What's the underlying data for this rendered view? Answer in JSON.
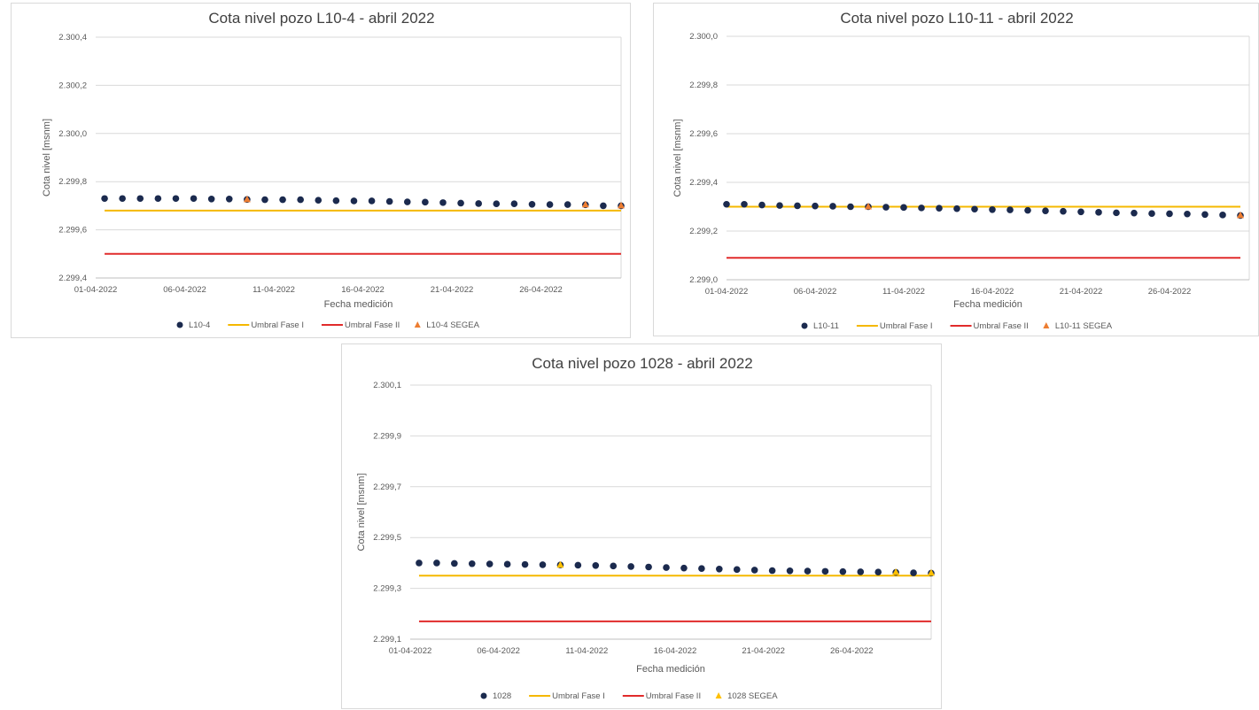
{
  "colors": {
    "dots": "#1b2a4e",
    "fase1": "#f5b800",
    "fase2": "#e12b2b",
    "segea_orange": "#ed7d31",
    "segea_yellow": "#ffc000",
    "grid": "#d9d9d9"
  },
  "chart_data": [
    {
      "type": "scatter",
      "title": "Cota nivel pozo L10-4 - abril 2022",
      "xlabel": "Fecha medición",
      "ylabel": "Cota nivel [msnm]",
      "ylim": [
        2299.4,
        2300.4
      ],
      "ytick_values": [
        2299.4,
        2299.6,
        2299.8,
        2300.0,
        2300.2,
        2300.4
      ],
      "ytick_labels": [
        "2.299,4",
        "2.299,6",
        "2.299,8",
        "2.300,0",
        "2.300,2",
        "2.300,4"
      ],
      "xlim": [
        1,
        30.5
      ],
      "xtick_values": [
        1,
        6,
        11,
        16,
        21,
        26
      ],
      "xtick_labels": [
        "01-04-2022",
        "06-04-2022",
        "11-04-2022",
        "16-04-2022",
        "21-04-2022",
        "26-04-2022"
      ],
      "grid": "horizontal",
      "legend": "bottom",
      "series": [
        {
          "name": "L10-4",
          "kind": "marker-circle",
          "color": "#1b2a4e",
          "x": [
            1.5,
            2.5,
            3.5,
            4.5,
            5.5,
            6.5,
            7.5,
            8.5,
            9.5,
            10.5,
            11.5,
            12.5,
            13.5,
            14.5,
            15.5,
            16.5,
            17.5,
            18.5,
            19.5,
            20.5,
            21.5,
            22.5,
            23.5,
            24.5,
            25.5,
            26.5,
            27.5,
            28.5,
            29.5,
            30.5
          ],
          "y": [
            2299.73,
            2299.73,
            2299.73,
            2299.73,
            2299.73,
            2299.73,
            2299.728,
            2299.728,
            2299.726,
            2299.725,
            2299.725,
            2299.725,
            2299.723,
            2299.721,
            2299.72,
            2299.72,
            2299.718,
            2299.716,
            2299.715,
            2299.713,
            2299.711,
            2299.709,
            2299.708,
            2299.708,
            2299.706,
            2299.705,
            2299.705,
            2299.704,
            2299.7,
            2299.7
          ]
        },
        {
          "name": "Umbral Fase I",
          "kind": "line",
          "color": "#f5b800",
          "x": [
            1.5,
            30.5
          ],
          "y": [
            2299.68,
            2299.68
          ]
        },
        {
          "name": "Umbral Fase II",
          "kind": "line",
          "color": "#e12b2b",
          "x": [
            1.5,
            30.5
          ],
          "y": [
            2299.5,
            2299.5
          ]
        },
        {
          "name": "L10-4 SEGEA",
          "kind": "marker-triangle",
          "color": "#ed7d31",
          "x": [
            9.5,
            28.5,
            30.5
          ],
          "y": [
            2299.726,
            2299.704,
            2299.7
          ]
        }
      ]
    },
    {
      "type": "scatter",
      "title": "Cota nivel pozo L10-11 - abril 2022",
      "xlabel": "Fecha medición",
      "ylabel": "Cota nivel [msnm]",
      "ylim": [
        2299.0,
        2300.0
      ],
      "ytick_values": [
        2299.0,
        2299.2,
        2299.4,
        2299.6,
        2299.8,
        2300.0
      ],
      "ytick_labels": [
        "2.299,0",
        "2.299,2",
        "2.299,4",
        "2.299,6",
        "2.299,8",
        "2.300,0"
      ],
      "xlim": [
        1,
        30.5
      ],
      "xtick_values": [
        1,
        6,
        11,
        16,
        21,
        26
      ],
      "xtick_labels": [
        "01-04-2022",
        "06-04-2022",
        "11-04-2022",
        "16-04-2022",
        "21-04-2022",
        "26-04-2022"
      ],
      "grid": "horizontal",
      "legend": "bottom",
      "series": [
        {
          "name": "L10-11",
          "kind": "marker-circle",
          "color": "#1b2a4e",
          "x": [
            1,
            2,
            3,
            4,
            5,
            6,
            7,
            8,
            9,
            10,
            11,
            12,
            13,
            14,
            15,
            16,
            17,
            18,
            19,
            20,
            21,
            22,
            23,
            24,
            25,
            26,
            27,
            28,
            29,
            30
          ],
          "y": [
            2299.31,
            2299.31,
            2299.307,
            2299.305,
            2299.304,
            2299.303,
            2299.302,
            2299.3,
            2299.3,
            2299.298,
            2299.297,
            2299.295,
            2299.294,
            2299.292,
            2299.29,
            2299.288,
            2299.287,
            2299.285,
            2299.283,
            2299.281,
            2299.279,
            2299.277,
            2299.275,
            2299.274,
            2299.272,
            2299.271,
            2299.27,
            2299.268,
            2299.266,
            2299.264
          ]
        },
        {
          "name": "Umbral Fase I",
          "kind": "line",
          "color": "#f5b800",
          "x": [
            1,
            30
          ],
          "y": [
            2299.3,
            2299.3
          ]
        },
        {
          "name": "Umbral Fase II",
          "kind": "line",
          "color": "#e12b2b",
          "x": [
            1,
            30
          ],
          "y": [
            2299.09,
            2299.09
          ]
        },
        {
          "name": "L10-11 SEGEA",
          "kind": "marker-triangle",
          "color": "#ed7d31",
          "x": [
            9,
            30
          ],
          "y": [
            2299.3,
            2299.264
          ]
        }
      ]
    },
    {
      "type": "scatter",
      "title": "Cota nivel pozo 1028 - abril 2022",
      "xlabel": "Fecha medición",
      "ylabel": "Cota nivel [msnm]",
      "ylim": [
        2299.1,
        2300.1
      ],
      "ytick_values": [
        2299.1,
        2299.3,
        2299.5,
        2299.7,
        2299.9,
        2300.1
      ],
      "ytick_labels": [
        "2.299,1",
        "2.299,3",
        "2.299,5",
        "2.299,7",
        "2.299,9",
        "2.300,1"
      ],
      "xlim": [
        1,
        30.5
      ],
      "xtick_values": [
        1,
        6,
        11,
        16,
        21,
        26
      ],
      "xtick_labels": [
        "01-04-2022",
        "06-04-2022",
        "11-04-2022",
        "16-04-2022",
        "21-04-2022",
        "26-04-2022"
      ],
      "grid": "horizontal",
      "legend": "bottom",
      "series": [
        {
          "name": "1028",
          "kind": "marker-circle",
          "color": "#1b2a4e",
          "x": [
            1.5,
            2.5,
            3.5,
            4.5,
            5.5,
            6.5,
            7.5,
            8.5,
            9.5,
            10.5,
            11.5,
            12.5,
            13.5,
            14.5,
            15.5,
            16.5,
            17.5,
            18.5,
            19.5,
            20.5,
            21.5,
            22.5,
            23.5,
            24.5,
            25.5,
            26.5,
            27.5,
            28.5,
            29.5,
            30.5
          ],
          "y": [
            2299.4,
            2299.4,
            2299.398,
            2299.397,
            2299.396,
            2299.395,
            2299.394,
            2299.393,
            2299.392,
            2299.391,
            2299.39,
            2299.388,
            2299.386,
            2299.384,
            2299.382,
            2299.38,
            2299.378,
            2299.376,
            2299.374,
            2299.372,
            2299.37,
            2299.369,
            2299.368,
            2299.367,
            2299.366,
            2299.365,
            2299.364,
            2299.363,
            2299.361,
            2299.36
          ]
        },
        {
          "name": "Umbral Fase I",
          "kind": "line",
          "color": "#f5b800",
          "x": [
            1.5,
            30.5
          ],
          "y": [
            2299.35,
            2299.35
          ]
        },
        {
          "name": "Umbral Fase II",
          "kind": "line",
          "color": "#e12b2b",
          "x": [
            1.5,
            30.5
          ],
          "y": [
            2299.17,
            2299.17
          ]
        },
        {
          "name": "1028 SEGEA",
          "kind": "marker-triangle",
          "color": "#ffc000",
          "x": [
            9.5,
            28.5,
            30.5
          ],
          "y": [
            2299.392,
            2299.363,
            2299.36
          ]
        }
      ]
    }
  ]
}
